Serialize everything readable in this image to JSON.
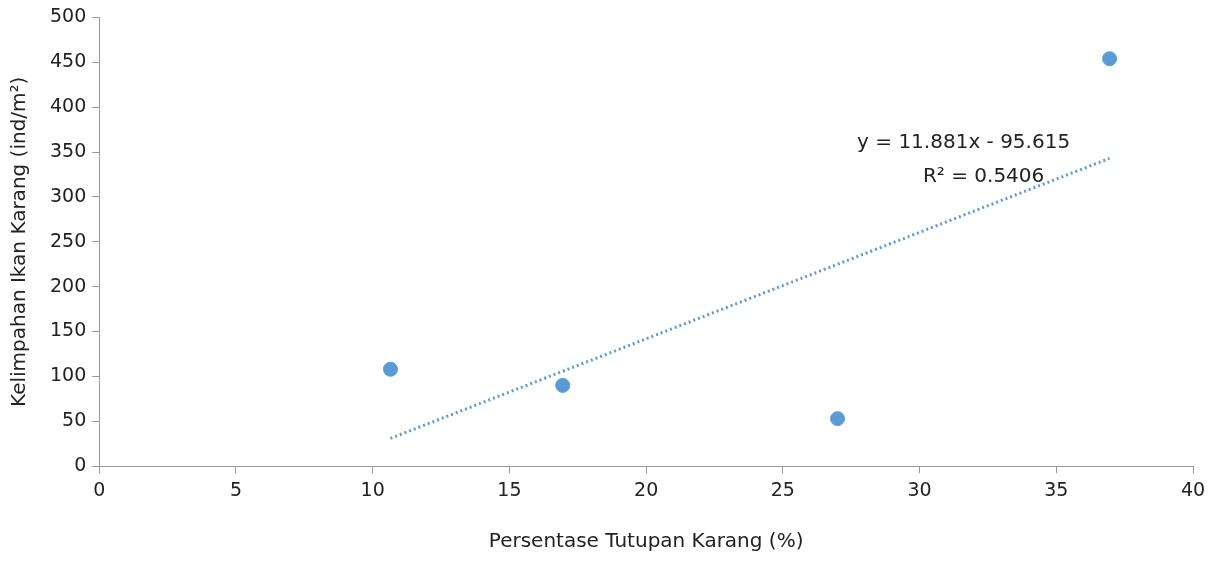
{
  "chart_data": {
    "type": "scatter",
    "xlabel": "Persentase Tutupan Karang (%)",
    "ylabel": "Kelimpahan Ikan Karang (ind/m²)",
    "xlim": [
      0,
      40
    ],
    "xticks": [
      0,
      5,
      10,
      15,
      20,
      25,
      30,
      35,
      40
    ],
    "ylim": [
      0,
      500
    ],
    "yticks": [
      0,
      50,
      100,
      150,
      200,
      250,
      300,
      350,
      400,
      450,
      500
    ],
    "series": [
      {
        "color": "#5b9bd5",
        "marker": "circle",
        "x": [
          10.65,
          16.95,
          27.0,
          36.95
        ],
        "values": [
          108,
          90,
          53,
          454
        ]
      },
      {
        "type": "line",
        "color": "#5b9bd5",
        "marker": "none",
        "line_style": "dotted",
        "x": [
          10.65,
          36.95
        ],
        "values": [
          31,
          343
        ]
      }
    ],
    "annotations": [
      "y = 11.881x - 95.615",
      "R² = 0.5406"
    ]
  }
}
